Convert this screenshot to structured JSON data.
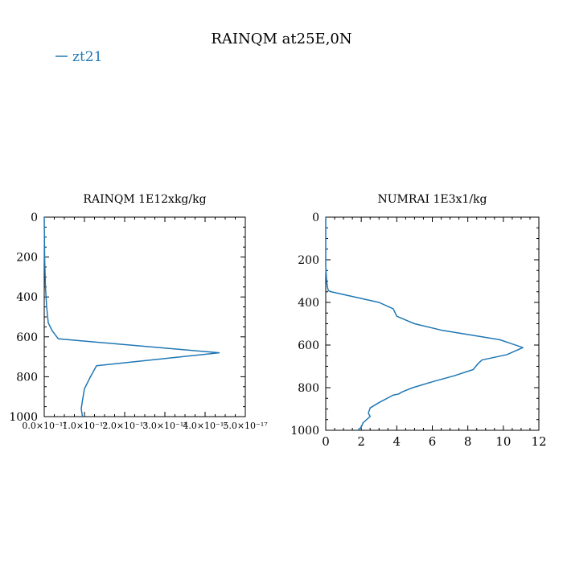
{
  "figure": {
    "title": "RAINQM at25E,0N",
    "legend": {
      "label": "zt21",
      "color": "#1f77b4",
      "placement": "top-left"
    }
  },
  "chart_data": [
    {
      "type": "line",
      "title": "RAINQM  1E12xkg/kg",
      "xlabel": "",
      "ylabel": "",
      "xlim": [
        0,
        5e-17
      ],
      "ylim": [
        1000,
        0
      ],
      "y_inverted": true,
      "xticks": [
        0,
        1e-17,
        2e-17,
        3e-17,
        4e-17,
        5e-17
      ],
      "xtick_labels": [
        "0.0×10⁻¹⁷",
        "1.0×10⁻¹⁷",
        "2.0×10⁻¹⁷",
        "3.0×10⁻¹⁷",
        "4.0×10⁻¹⁷",
        "5.0×10⁻¹⁷"
      ],
      "yticks": [
        0,
        200,
        400,
        600,
        800,
        1000
      ],
      "ytick_labels": [
        "0",
        "200",
        "400",
        "600",
        "800",
        "1000"
      ],
      "grid": false,
      "series": [
        {
          "name": "zt21",
          "color": "#1f77b4",
          "x": [
            0,
            1e-19,
            3e-19,
            6e-19,
            1e-18,
            2e-18,
            3.5e-18,
            4.35e-17,
            1.3e-17,
            1.15e-17,
            1e-17,
            9.5e-18,
            9.2e-18,
            9.5e-18
          ],
          "y": [
            0,
            200,
            350,
            450,
            530,
            570,
            610,
            680,
            745,
            800,
            860,
            920,
            960,
            1000
          ]
        }
      ]
    },
    {
      "type": "line",
      "title": "NUMRAI  1E3x1/kg",
      "xlabel": "",
      "ylabel": "",
      "xlim": [
        0,
        12
      ],
      "ylim": [
        1000,
        0
      ],
      "y_inverted": true,
      "xticks": [
        0,
        2,
        4,
        6,
        8,
        10,
        12
      ],
      "xtick_labels": [
        "0",
        "2",
        "4",
        "6",
        "8",
        "10",
        "12"
      ],
      "yticks": [
        0,
        200,
        400,
        600,
        800,
        1000
      ],
      "ytick_labels": [
        "0",
        "200",
        "400",
        "600",
        "800",
        "1000"
      ],
      "grid": false,
      "series": [
        {
          "name": "zt21",
          "color": "#1f77b4",
          "x": [
            0,
            0,
            0.05,
            0.1,
            0.15,
            0.3,
            3,
            3.8,
            4,
            5,
            6.5,
            9.8,
            11.1,
            10.2,
            8.8,
            8.6,
            8.3,
            7.2,
            6.1,
            4.9,
            4.3,
            4.1,
            3.8,
            3,
            2.5,
            2.4,
            2.5,
            2.3,
            2.1,
            2.0,
            1.8
          ],
          "y": [
            0,
            230,
            300,
            330,
            345,
            350,
            400,
            430,
            465,
            500,
            530,
            575,
            612,
            645,
            670,
            685,
            715,
            745,
            770,
            800,
            820,
            830,
            835,
            870,
            895,
            920,
            935,
            950,
            965,
            985,
            1000
          ]
        }
      ]
    }
  ]
}
